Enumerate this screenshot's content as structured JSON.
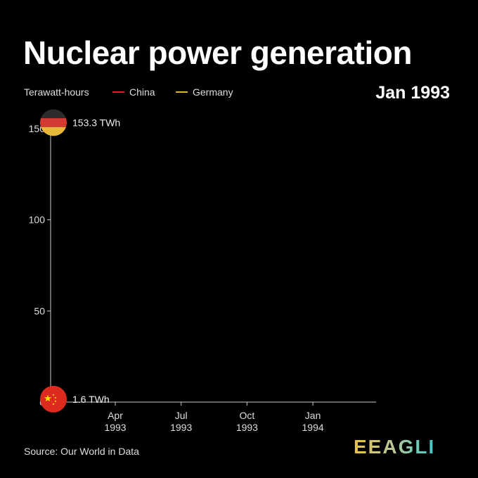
{
  "title": "Nuclear power generation",
  "current_date": "Jan 1993",
  "source": "Source: Our World in Data",
  "logo_text": "EEAGLI",
  "chart_data": {
    "type": "line",
    "ylabel": "Terawatt-hours",
    "ylim": [
      0,
      155
    ],
    "yticks": [
      0,
      50,
      100,
      150
    ],
    "xticks": [
      {
        "l1": "Apr",
        "l2": "1993"
      },
      {
        "l1": "Jul",
        "l2": "1993"
      },
      {
        "l1": "Oct",
        "l2": "1993"
      },
      {
        "l1": "Jan",
        "l2": "1994"
      }
    ],
    "grid": false,
    "legend_placement": "top-left",
    "series": [
      {
        "name": "China",
        "color": "#e0201b",
        "x": [
          "Jan 1993"
        ],
        "values": [
          1.6
        ],
        "label": "1.6 TWh",
        "flag": "china"
      },
      {
        "name": "Germany",
        "color": "#e0b428",
        "x": [
          "Jan 1993"
        ],
        "values": [
          153.3
        ],
        "label": "153.3 TWh",
        "flag": "germany"
      }
    ]
  }
}
